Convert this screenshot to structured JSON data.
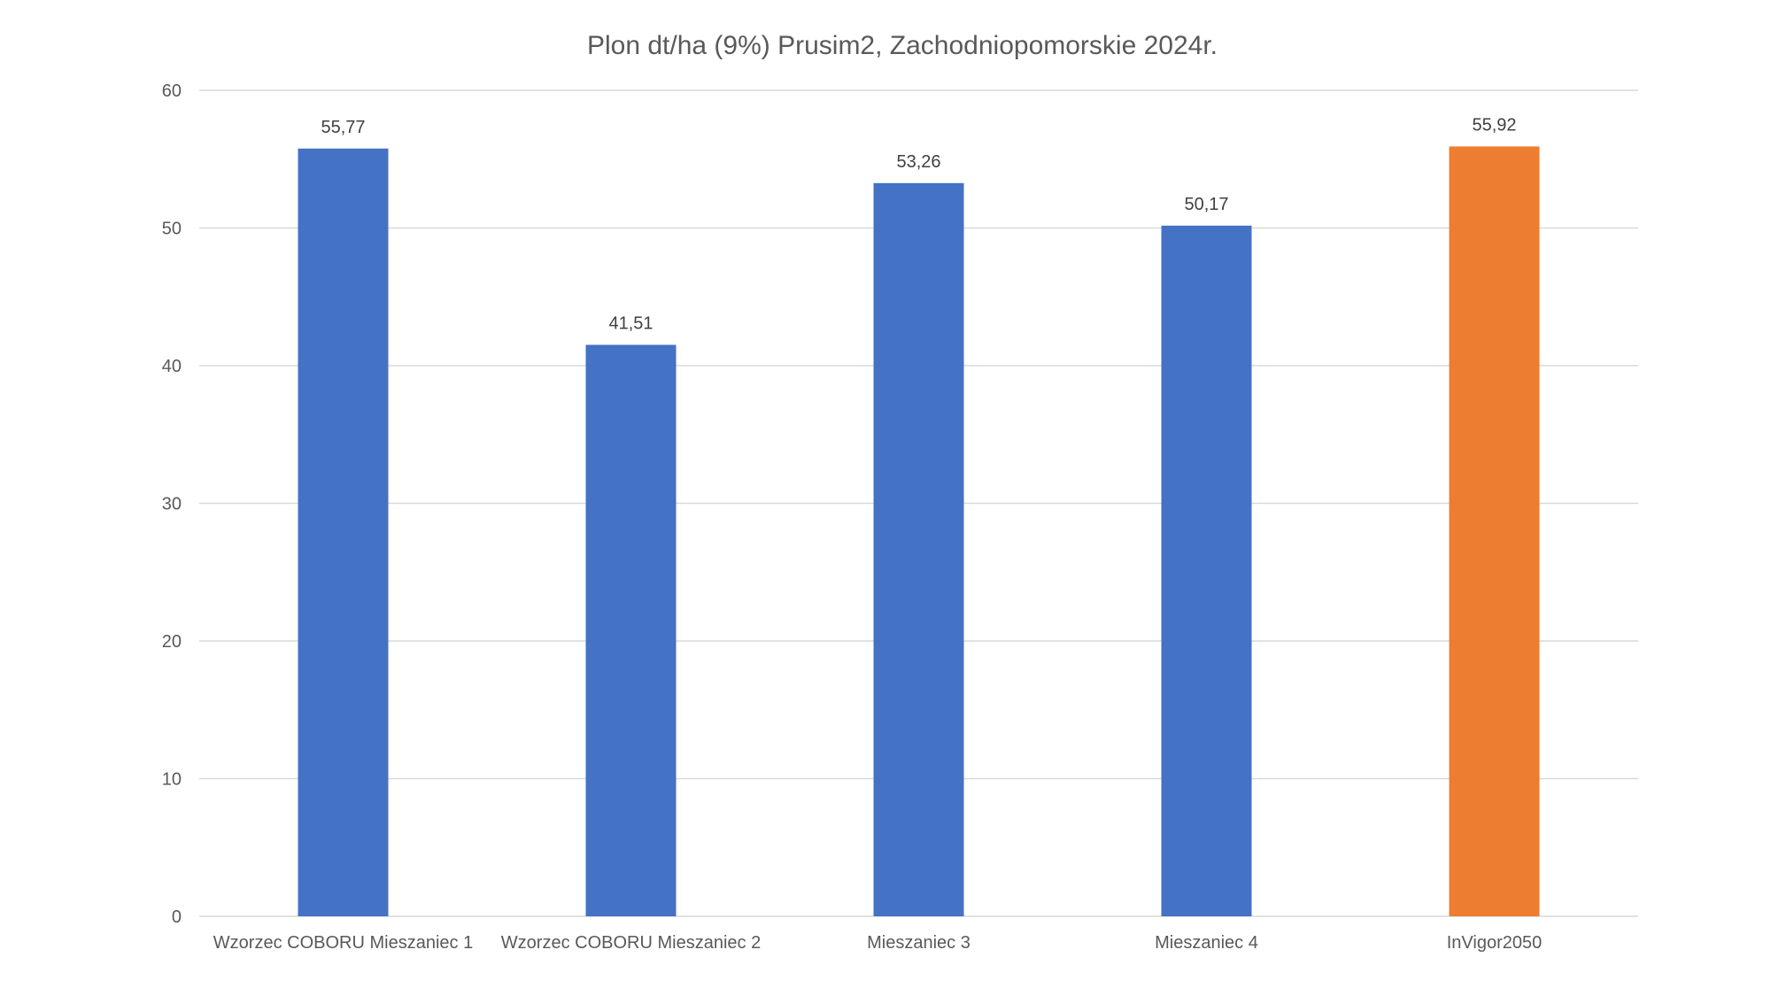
{
  "chart_data": {
    "type": "bar",
    "title": "Plon dt/ha (9%) Prusim2, Zachodniopomorskie 2024r.",
    "xlabel": "",
    "ylabel": "",
    "categories": [
      "Wzorzec COBORU Mieszaniec 1",
      "Wzorzec COBORU Mieszaniec 2",
      "Mieszaniec 3",
      "Mieszaniec 4",
      "InVigor2050"
    ],
    "values": [
      55.77,
      41.51,
      53.26,
      50.17,
      55.92
    ],
    "value_labels": [
      "55,77",
      "41,51",
      "53,26",
      "50,17",
      "55,92"
    ],
    "bar_colors": [
      "#4472c4",
      "#4472c4",
      "#4472c4",
      "#4472c4",
      "#ed7d31"
    ],
    "ylim": [
      0,
      60
    ],
    "yticks": [
      0,
      10,
      20,
      30,
      40,
      50,
      60
    ],
    "grid": true,
    "legend": "none"
  }
}
